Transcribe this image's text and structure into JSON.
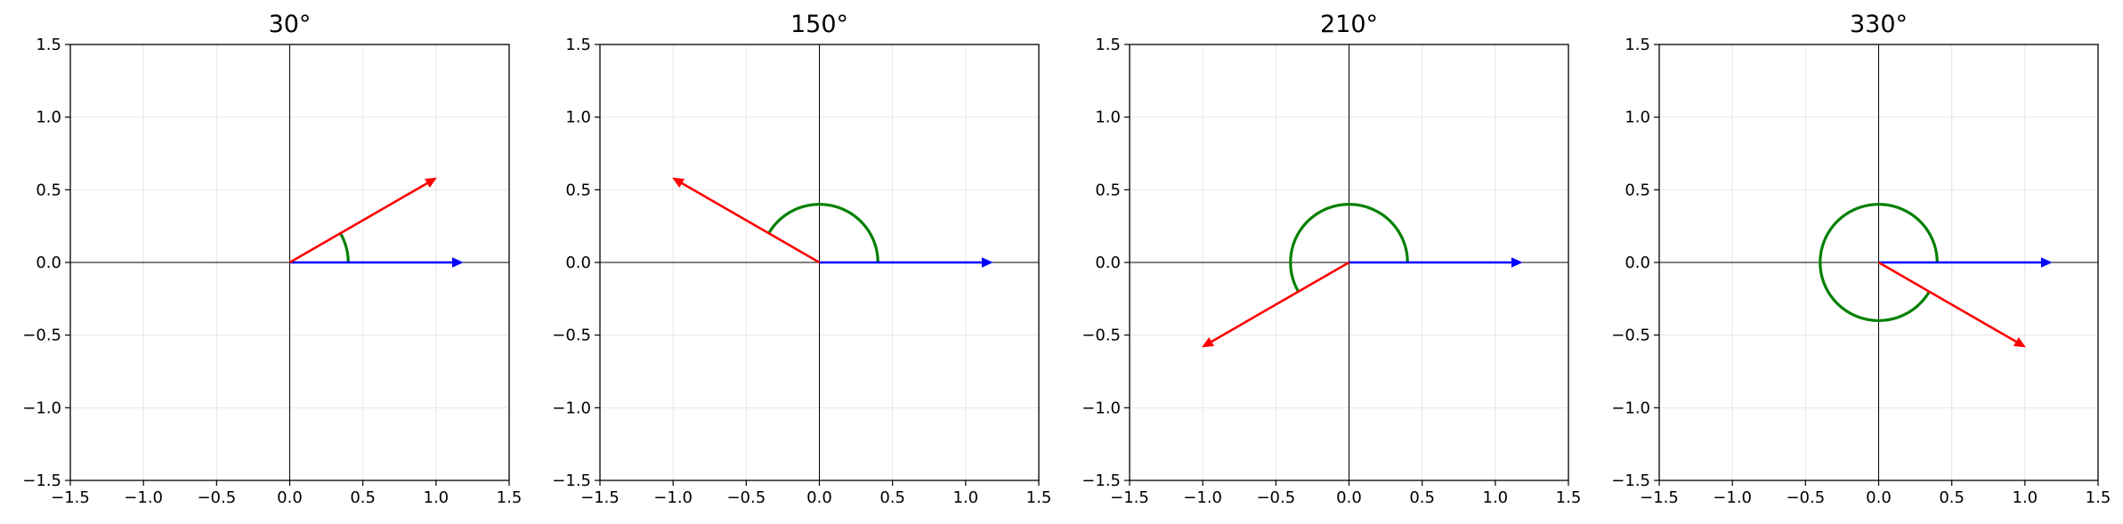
{
  "chart_data": [
    {
      "type": "vector-angle-plot",
      "title": "30°",
      "xlim": [
        -1.5,
        1.5
      ],
      "ylim": [
        -1.5,
        1.5
      ],
      "xticks": [
        -1.5,
        -1.0,
        -0.5,
        0.0,
        0.5,
        1.0,
        1.5
      ],
      "yticks": [
        -1.5,
        -1.0,
        -0.5,
        0.0,
        0.5,
        1.0,
        1.5
      ],
      "xtick_labels": [
        "−1.5",
        "−1.0",
        "−0.5",
        "0.0",
        "0.5",
        "1.0",
        "1.5"
      ],
      "ytick_labels": [
        "−1.5",
        "−1.0",
        "−0.5",
        "0.0",
        "0.5",
        "1.0",
        "1.5"
      ],
      "grid": true,
      "reference_vector": {
        "from": [
          0,
          0
        ],
        "to": [
          1.18,
          0
        ],
        "color": "#0000ff"
      },
      "rotated_vector": {
        "from": [
          0,
          0
        ],
        "to": [
          1.0,
          0.58
        ],
        "color": "#ff0000"
      },
      "angle_arc": {
        "radius": 0.4,
        "start_deg": 0,
        "end_deg": 30,
        "color": "#008000"
      }
    },
    {
      "type": "vector-angle-plot",
      "title": "150°",
      "xlim": [
        -1.5,
        1.5
      ],
      "ylim": [
        -1.5,
        1.5
      ],
      "xticks": [
        -1.5,
        -1.0,
        -0.5,
        0.0,
        0.5,
        1.0,
        1.5
      ],
      "yticks": [
        -1.5,
        -1.0,
        -0.5,
        0.0,
        0.5,
        1.0,
        1.5
      ],
      "xtick_labels": [
        "−1.5",
        "−1.0",
        "−0.5",
        "0.0",
        "0.5",
        "1.0",
        "1.5"
      ],
      "ytick_labels": [
        "−1.5",
        "−1.0",
        "−0.5",
        "0.0",
        "0.5",
        "1.0",
        "1.5"
      ],
      "grid": true,
      "reference_vector": {
        "from": [
          0,
          0
        ],
        "to": [
          1.18,
          0
        ],
        "color": "#0000ff"
      },
      "rotated_vector": {
        "from": [
          0,
          0
        ],
        "to": [
          -1.0,
          0.58
        ],
        "color": "#ff0000"
      },
      "angle_arc": {
        "radius": 0.4,
        "start_deg": 0,
        "end_deg": 150,
        "color": "#008000"
      }
    },
    {
      "type": "vector-angle-plot",
      "title": "210°",
      "xlim": [
        -1.5,
        1.5
      ],
      "ylim": [
        -1.5,
        1.5
      ],
      "xticks": [
        -1.5,
        -1.0,
        -0.5,
        0.0,
        0.5,
        1.0,
        1.5
      ],
      "yticks": [
        -1.5,
        -1.0,
        -0.5,
        0.0,
        0.5,
        1.0,
        1.5
      ],
      "xtick_labels": [
        "−1.5",
        "−1.0",
        "−0.5",
        "0.0",
        "0.5",
        "1.0",
        "1.5"
      ],
      "ytick_labels": [
        "−1.5",
        "−1.0",
        "−0.5",
        "0.0",
        "0.5",
        "1.0",
        "1.5"
      ],
      "grid": true,
      "reference_vector": {
        "from": [
          0,
          0
        ],
        "to": [
          1.18,
          0
        ],
        "color": "#0000ff"
      },
      "rotated_vector": {
        "from": [
          0,
          0
        ],
        "to": [
          -1.0,
          -0.58
        ],
        "color": "#ff0000"
      },
      "angle_arc": {
        "radius": 0.4,
        "start_deg": 0,
        "end_deg": 210,
        "color": "#008000"
      }
    },
    {
      "type": "vector-angle-plot",
      "title": "330°",
      "xlim": [
        -1.5,
        1.5
      ],
      "ylim": [
        -1.5,
        1.5
      ],
      "xticks": [
        -1.5,
        -1.0,
        -0.5,
        0.0,
        0.5,
        1.0,
        1.5
      ],
      "yticks": [
        -1.5,
        -1.0,
        -0.5,
        0.0,
        0.5,
        1.0,
        1.5
      ],
      "xtick_labels": [
        "−1.5",
        "−1.0",
        "−0.5",
        "0.0",
        "0.5",
        "1.0",
        "1.5"
      ],
      "ytick_labels": [
        "−1.5",
        "−1.0",
        "−0.5",
        "0.0",
        "0.5",
        "1.0",
        "1.5"
      ],
      "grid": true,
      "reference_vector": {
        "from": [
          0,
          0
        ],
        "to": [
          1.18,
          0
        ],
        "color": "#0000ff"
      },
      "rotated_vector": {
        "from": [
          0,
          0
        ],
        "to": [
          1.0,
          -0.58
        ],
        "color": "#ff0000"
      },
      "angle_arc": {
        "radius": 0.4,
        "start_deg": 0,
        "end_deg": 330,
        "color": "#008000"
      }
    }
  ]
}
